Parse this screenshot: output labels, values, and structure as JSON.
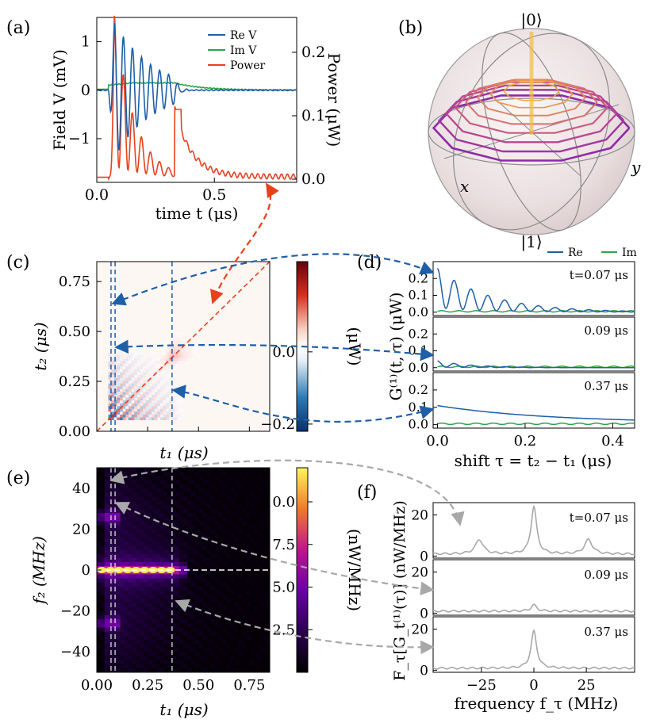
{
  "panels": {
    "a": "(a)",
    "b": "(b)",
    "c": "(c)",
    "d": "(d)",
    "e": "(e)",
    "f": "(f)"
  },
  "chart_data": [
    {
      "panel": "(a)",
      "type": "line",
      "xlabel": "time t (μs)",
      "ylabel": "Field V (mV)",
      "y2label": "Power (μW)",
      "xlim": [
        0,
        0.85
      ],
      "ylim": [
        -1.9,
        1.5
      ],
      "y2lim": [
        -0.005,
        0.255
      ],
      "xticks": [
        "0.0",
        "0.5"
      ],
      "yticks": [
        "−1",
        "0",
        "1"
      ],
      "y2ticks": [
        "0.0",
        "0.1",
        "0.2"
      ],
      "legend": [
        "Re V",
        "Im V",
        "Power"
      ],
      "legend_position": "top-right",
      "series": [
        {
          "name": "Re V",
          "color": "#1f5fa8",
          "peak": 1.4,
          "freq_mhz": 26,
          "decay_us": 0.1
        },
        {
          "name": "Im V",
          "color": "#2ca548",
          "plateau": 0.15,
          "plateau_end_us": 0.33
        },
        {
          "name": "Power",
          "color": "#e8401c",
          "peak_uw": 0.24,
          "baseline_uw": 0.0
        }
      ]
    },
    {
      "panel": "(b)",
      "type": "other",
      "description_labels": [
        "|0⟩",
        "|1⟩",
        "x",
        "y"
      ]
    },
    {
      "panel": "(c)",
      "type": "heatmap",
      "xlabel": "t₁ (μs)",
      "ylabel": "t₂ (μs)",
      "xlim": [
        0,
        0.85
      ],
      "ylim": [
        0,
        0.85
      ],
      "yticks": [
        "0.00",
        "0.25",
        "0.50",
        "0.75"
      ],
      "colorbar_label": "(μW)",
      "colorbar_ticks": [
        "0.0",
        "−0.2"
      ],
      "colorbar_range": [
        -0.22,
        0.25
      ],
      "cut_lines_us": [
        0.07,
        0.09,
        0.37
      ]
    },
    {
      "panel": "(d)",
      "type": "line",
      "xlabel": "shift τ = t₂ − t₁ (μs)",
      "ylabel": "G⁽¹⁾(t, τ) (μW)",
      "xlim": [
        -0.01,
        0.45
      ],
      "xticks": [
        "0.0",
        "0.2",
        "0.4"
      ],
      "legend": [
        "Re",
        "Im"
      ],
      "legend_position": "top-right",
      "subplots": [
        {
          "label": "t=0.07 μs",
          "ylim": [
            -0.02,
            0.3
          ],
          "yticks": [
            "0.0",
            "0.1",
            "0.2"
          ],
          "amp": 0.26,
          "decay": 0.12,
          "freq_mhz": 26
        },
        {
          "label": "0.09 μs",
          "ylim": [
            -0.02,
            0.3
          ],
          "yticks": [
            "0.0",
            "0.1",
            "0.2"
          ],
          "amp": 0.04,
          "decay": 0.08,
          "freq_mhz": 26
        },
        {
          "label": "0.37 μs",
          "ylim": [
            -0.02,
            0.3
          ],
          "yticks": [
            "0.0",
            "0.1",
            "0.2"
          ],
          "amp": 0.1,
          "decay": 0.25,
          "freq_mhz": 0
        }
      ]
    },
    {
      "panel": "(e)",
      "type": "heatmap",
      "xlabel": "t₁ (μs)",
      "ylabel": "f₂ (MHz)",
      "xlim": [
        0,
        0.85
      ],
      "ylim": [
        -50,
        50
      ],
      "xticks": [
        "0.00",
        "0.25",
        "0.50",
        "0.75"
      ],
      "yticks": [
        "−40",
        "−20",
        "0",
        "20",
        "40"
      ],
      "colorbar_label": "(nW/MHz)",
      "colorbar_ticks": [
        "2.5",
        "5.0",
        "7.5",
        "10.0"
      ],
      "colorbar_range": [
        0,
        12
      ],
      "cut_lines_us": [
        0.07,
        0.09,
        0.37
      ]
    },
    {
      "panel": "(f)",
      "type": "line",
      "xlabel": "frequency f_τ (MHz)",
      "ylabel": "F_τ[G_t⁽¹⁾(τ)] (nW/MHz)",
      "xlim": [
        -48,
        48
      ],
      "xticks": [
        "−25",
        "0",
        "25"
      ],
      "subplots": [
        {
          "label": "t=0.07 μs",
          "ylim": [
            -1,
            26
          ],
          "yticks": [
            "0",
            "20"
          ],
          "center_peak": 23,
          "side_peaks": 7
        },
        {
          "label": "0.09 μs",
          "ylim": [
            -1,
            26
          ],
          "yticks": [
            "0",
            "20"
          ],
          "center_peak": 3,
          "side_peaks": 0
        },
        {
          "label": "0.37 μs",
          "ylim": [
            -1,
            26
          ],
          "yticks": [
            "0",
            "20"
          ],
          "center_peak": 18,
          "side_peaks": 0
        }
      ]
    }
  ]
}
